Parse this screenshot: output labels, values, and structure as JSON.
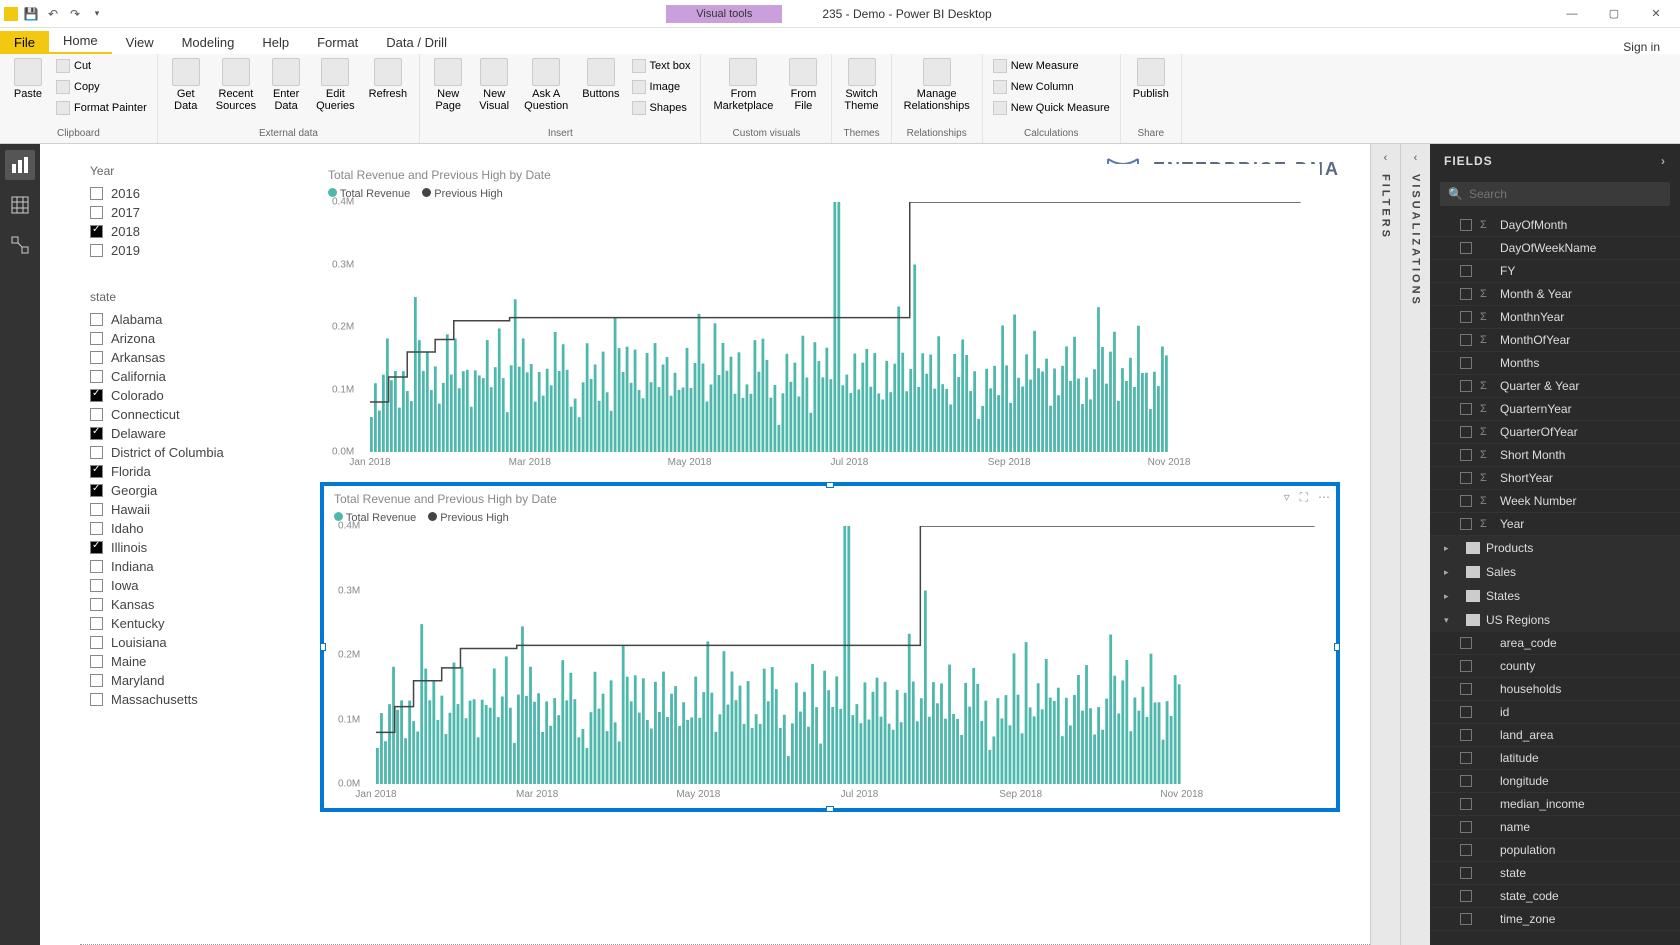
{
  "visual_tools_label": "Visual tools",
  "doc_title": "235 - Demo - Power BI Desktop",
  "signin_label": "Sign in",
  "menu_tabs": {
    "file": "File",
    "home": "Home",
    "view": "View",
    "modeling": "Modeling",
    "help": "Help",
    "format": "Format",
    "data_drill": "Data / Drill"
  },
  "ribbon": {
    "clipboard": {
      "paste": "Paste",
      "cut": "Cut",
      "copy": "Copy",
      "format_painter": "Format Painter",
      "group": "Clipboard"
    },
    "external": {
      "get_data": "Get\nData",
      "recent": "Recent\nSources",
      "enter": "Enter\nData",
      "edit_q": "Edit\nQueries",
      "refresh": "Refresh",
      "group": "External data"
    },
    "insert": {
      "new_page": "New\nPage",
      "new_visual": "New\nVisual",
      "ask": "Ask A\nQuestion",
      "buttons": "Buttons",
      "textbox": "Text box",
      "image": "Image",
      "shapes": "Shapes",
      "group": "Insert"
    },
    "custom": {
      "marketplace": "From\nMarketplace",
      "file": "From\nFile",
      "group": "Custom visuals"
    },
    "themes": {
      "switch": "Switch\nTheme",
      "group": "Themes"
    },
    "rel": {
      "manage": "Manage\nRelationships",
      "group": "Relationships"
    },
    "calc": {
      "new_measure": "New Measure",
      "new_column": "New Column",
      "new_quick": "New Quick Measure",
      "group": "Calculations"
    },
    "share": {
      "publish": "Publish",
      "group": "Share"
    }
  },
  "logo_text": "ENTERPRISE DNA",
  "year_slicer": {
    "title": "Year",
    "items": [
      {
        "label": "2016",
        "checked": false
      },
      {
        "label": "2017",
        "checked": false
      },
      {
        "label": "2018",
        "checked": true
      },
      {
        "label": "2019",
        "checked": false
      }
    ]
  },
  "state_slicer": {
    "title": "state",
    "items": [
      {
        "label": "Alabama",
        "checked": false
      },
      {
        "label": "Arizona",
        "checked": false
      },
      {
        "label": "Arkansas",
        "checked": false
      },
      {
        "label": "California",
        "checked": false
      },
      {
        "label": "Colorado",
        "checked": true
      },
      {
        "label": "Connecticut",
        "checked": false
      },
      {
        "label": "Delaware",
        "checked": true
      },
      {
        "label": "District of Columbia",
        "checked": false
      },
      {
        "label": "Florida",
        "checked": true
      },
      {
        "label": "Georgia",
        "checked": true
      },
      {
        "label": "Hawaii",
        "checked": false
      },
      {
        "label": "Idaho",
        "checked": false
      },
      {
        "label": "Illinois",
        "checked": true
      },
      {
        "label": "Indiana",
        "checked": false
      },
      {
        "label": "Iowa",
        "checked": false
      },
      {
        "label": "Kansas",
        "checked": false
      },
      {
        "label": "Kentucky",
        "checked": false
      },
      {
        "label": "Louisiana",
        "checked": false
      },
      {
        "label": "Maine",
        "checked": false
      },
      {
        "label": "Maryland",
        "checked": false
      },
      {
        "label": "Massachusetts",
        "checked": false
      }
    ]
  },
  "chart": {
    "title": "Total Revenue and Previous High by Date",
    "legend": [
      {
        "label": "Total Revenue",
        "color": "#4fb8ac"
      },
      {
        "label": "Previous High",
        "color": "#444444"
      }
    ],
    "y_labels": [
      "0.0M",
      "0.1M",
      "0.2M",
      "0.3M",
      "0.4M"
    ],
    "y_max": 0.4,
    "x_labels": [
      "Jan 2018",
      "Mar 2018",
      "May 2018",
      "Jul 2018",
      "Sep 2018",
      "Nov 2018"
    ],
    "bar_color": "#4fb8ac",
    "line_color": "#444444",
    "background": "#ffffff",
    "step_line": [
      {
        "x": 0,
        "y": 0.08
      },
      {
        "x": 0.02,
        "y": 0.08
      },
      {
        "x": 0.02,
        "y": 0.12
      },
      {
        "x": 0.04,
        "y": 0.12
      },
      {
        "x": 0.04,
        "y": 0.16
      },
      {
        "x": 0.07,
        "y": 0.16
      },
      {
        "x": 0.07,
        "y": 0.18
      },
      {
        "x": 0.09,
        "y": 0.18
      },
      {
        "x": 0.09,
        "y": 0.21
      },
      {
        "x": 0.12,
        "y": 0.21
      },
      {
        "x": 0.12,
        "y": 0.21
      },
      {
        "x": 0.15,
        "y": 0.21
      },
      {
        "x": 0.15,
        "y": 0.215
      },
      {
        "x": 0.58,
        "y": 0.215
      },
      {
        "x": 0.58,
        "y": 0.4
      },
      {
        "x": 1.0,
        "y": 0.4
      }
    ],
    "bars_pattern": [
      0.08,
      0.12,
      0.06,
      0.1,
      0.14,
      0.09,
      0.11,
      0.07,
      0.16,
      0.12,
      0.08,
      0.21,
      0.14,
      0.1,
      0.13,
      0.09,
      0.15,
      0.11,
      0.12,
      0.17,
      0.1,
      0.14,
      0.08,
      0.11,
      0.13,
      0.09,
      0.16,
      0.12,
      0.1,
      0.14,
      0.08,
      0.11,
      0.18,
      0.13,
      0.09,
      0.15,
      0.22,
      0.11,
      0.14,
      0.1,
      0.12,
      0.08,
      0.16,
      0.11,
      0.13,
      0.09,
      0.15,
      0.1,
      0.14,
      0.12
    ]
  },
  "panels": {
    "visualizations": "VISUALIZATIONS",
    "filters": "FILTERS",
    "fields": "FIELDS"
  },
  "search_placeholder": "Search",
  "date_fields": [
    "DayOfMonth",
    "DayOfWeekName",
    "FY",
    "Month & Year",
    "MonthnYear",
    "MonthOfYear",
    "Months",
    "Quarter & Year",
    "QuarternYear",
    "QuarterOfYear",
    "Short Month",
    "ShortYear",
    "Week Number",
    "Year"
  ],
  "tables": [
    "Products",
    "Sales",
    "States",
    "US Regions"
  ],
  "region_fields": [
    "area_code",
    "county",
    "households",
    "id",
    "land_area",
    "latitude",
    "longitude",
    "median_income",
    "name",
    "population",
    "state",
    "state_code",
    "time_zone"
  ]
}
